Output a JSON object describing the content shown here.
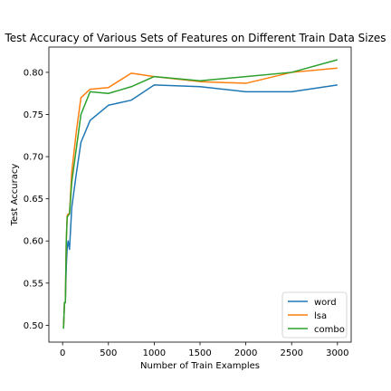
{
  "chart_data": {
    "type": "line",
    "title": "Test Accuracy of Various Sets of Features on Different Train Data Sizes",
    "xlabel": "Number of Train Examples",
    "ylabel": "Test Accuracy",
    "xlim": [
      -150,
      3150
    ],
    "ylim": [
      0.48,
      0.83
    ],
    "xticks": [
      0,
      500,
      1000,
      1500,
      2000,
      2500,
      3000
    ],
    "yticks": [
      0.5,
      0.55,
      0.6,
      0.65,
      0.7,
      0.75,
      0.8
    ],
    "xtick_labels": [
      "0",
      "500",
      "1000",
      "1500",
      "2000",
      "2500",
      "3000"
    ],
    "ytick_labels": [
      "0.50",
      "0.55",
      "0.60",
      "0.65",
      "0.70",
      "0.75",
      "0.80"
    ],
    "grid": false,
    "legend_position": "lower-right",
    "series": [
      {
        "name": "word",
        "color": "#1f77b4",
        "x": [
          10,
          20,
          30,
          40,
          50,
          60,
          75,
          100,
          150,
          200,
          300,
          500,
          750,
          1000,
          1500,
          2000,
          2500,
          3000
        ],
        "y": [
          0.498,
          0.525,
          0.528,
          0.57,
          0.592,
          0.6,
          0.59,
          0.64,
          0.68,
          0.717,
          0.743,
          0.761,
          0.767,
          0.785,
          0.783,
          0.777,
          0.777,
          0.785
        ]
      },
      {
        "name": "lsa",
        "color": "#ff7f0e",
        "x": [
          10,
          20,
          30,
          40,
          50,
          60,
          75,
          100,
          150,
          200,
          300,
          500,
          750,
          1000,
          1500,
          2000,
          2500,
          3000
        ],
        "y": [
          0.496,
          0.527,
          0.527,
          0.6,
          0.63,
          0.632,
          0.632,
          0.682,
          0.73,
          0.77,
          0.78,
          0.782,
          0.799,
          0.795,
          0.789,
          0.787,
          0.8,
          0.805
        ]
      },
      {
        "name": "combo",
        "color": "#2ca02c",
        "x": [
          10,
          20,
          30,
          40,
          50,
          60,
          75,
          100,
          150,
          200,
          300,
          500,
          750,
          1000,
          1500,
          2000,
          2500,
          3000
        ],
        "y": [
          0.496,
          0.527,
          0.527,
          0.6,
          0.628,
          0.63,
          0.632,
          0.67,
          0.71,
          0.75,
          0.777,
          0.775,
          0.783,
          0.795,
          0.79,
          0.795,
          0.8,
          0.815
        ]
      }
    ]
  }
}
